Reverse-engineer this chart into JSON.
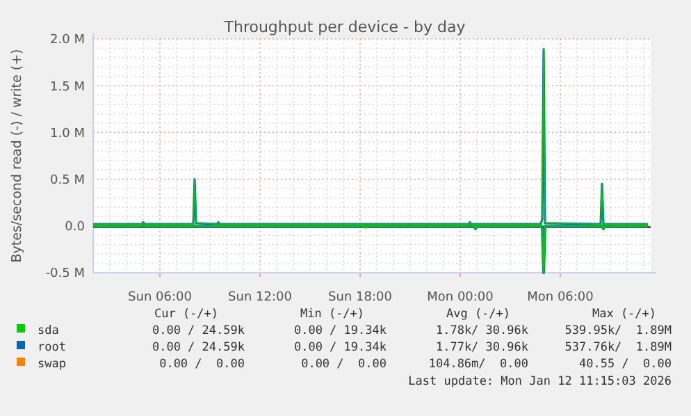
{
  "chart_data": {
    "type": "line",
    "title": "Throughput per device - by day",
    "ylabel": "Bytes/second read (-) / write (+)",
    "xlim": [
      "2026-01-11T02:00",
      "2026-01-12T11:25"
    ],
    "ylim": [
      -0.5,
      2.0
    ],
    "xticks": [
      {
        "value": "2026-01-11T03:00",
        "label": null
      },
      {
        "value": "2026-01-11T04:00",
        "label": null
      },
      {
        "value": "2026-01-11T05:00",
        "label": null
      },
      {
        "value": "2026-01-11T06:00",
        "label": "Sun 06:00"
      },
      {
        "value": "2026-01-11T07:00",
        "label": null
      },
      {
        "value": "2026-01-11T08:00",
        "label": null
      },
      {
        "value": "2026-01-11T09:00",
        "label": null
      },
      {
        "value": "2026-01-11T10:00",
        "label": null
      },
      {
        "value": "2026-01-11T11:00",
        "label": null
      },
      {
        "value": "2026-01-11T12:00",
        "label": "Sun 12:00"
      },
      {
        "value": "2026-01-11T13:00",
        "label": null
      },
      {
        "value": "2026-01-11T14:00",
        "label": null
      },
      {
        "value": "2026-01-11T15:00",
        "label": null
      },
      {
        "value": "2026-01-11T16:00",
        "label": null
      },
      {
        "value": "2026-01-11T17:00",
        "label": null
      },
      {
        "value": "2026-01-11T18:00",
        "label": "Sun 18:00"
      },
      {
        "value": "2026-01-11T19:00",
        "label": null
      },
      {
        "value": "2026-01-11T20:00",
        "label": null
      },
      {
        "value": "2026-01-11T21:00",
        "label": null
      },
      {
        "value": "2026-01-11T22:00",
        "label": null
      },
      {
        "value": "2026-01-11T23:00",
        "label": null
      },
      {
        "value": "2026-01-12T00:00",
        "label": "Mon 00:00"
      },
      {
        "value": "2026-01-12T01:00",
        "label": null
      },
      {
        "value": "2026-01-12T02:00",
        "label": null
      },
      {
        "value": "2026-01-12T03:00",
        "label": null
      },
      {
        "value": "2026-01-12T04:00",
        "label": null
      },
      {
        "value": "2026-01-12T05:00",
        "label": null
      },
      {
        "value": "2026-01-12T06:00",
        "label": "Mon 06:00"
      },
      {
        "value": "2026-01-12T07:00",
        "label": null
      },
      {
        "value": "2026-01-12T08:00",
        "label": null
      },
      {
        "value": "2026-01-12T09:00",
        "label": null
      },
      {
        "value": "2026-01-12T10:00",
        "label": null
      },
      {
        "value": "2026-01-12T11:00",
        "label": null
      }
    ],
    "yticks": [
      {
        "value": -0.5,
        "label": "-0.5 M"
      },
      {
        "value": -0.4,
        "label": null
      },
      {
        "value": -0.3,
        "label": null
      },
      {
        "value": -0.2,
        "label": null
      },
      {
        "value": -0.1,
        "label": null
      },
      {
        "value": 0,
        "label": "0.0"
      },
      {
        "value": 0.1,
        "label": null
      },
      {
        "value": 0.2,
        "label": null
      },
      {
        "value": 0.3,
        "label": null
      },
      {
        "value": 0.4,
        "label": null
      },
      {
        "value": 0.5,
        "label": "0.5 M"
      },
      {
        "value": 0.6,
        "label": null
      },
      {
        "value": 0.7,
        "label": null
      },
      {
        "value": 0.8,
        "label": null
      },
      {
        "value": 0.9,
        "label": null
      },
      {
        "value": 1.0,
        "label": "1.0 M"
      },
      {
        "value": 1.1,
        "label": null
      },
      {
        "value": 1.2,
        "label": null
      },
      {
        "value": 1.3,
        "label": null
      },
      {
        "value": 1.4,
        "label": null
      },
      {
        "value": 1.5,
        "label": "1.5 M"
      },
      {
        "value": 1.6,
        "label": null
      },
      {
        "value": 1.7,
        "label": null
      },
      {
        "value": 1.8,
        "label": null
      },
      {
        "value": 1.9,
        "label": null
      },
      {
        "value": 2.0,
        "label": "2.0 M"
      }
    ],
    "grid": true,
    "legend": "bottom",
    "marker": "none",
    "line_style": "solid",
    "ref_lines": [
      {
        "axis": "y",
        "value": 0,
        "color": "#000000"
      }
    ],
    "series": [
      {
        "name": "sda",
        "color": "#00cc00",
        "x": [
          "2026-01-11T02:00",
          "2026-01-11T04:55",
          "2026-01-11T05:00",
          "2026-01-11T05:05",
          "2026-01-11T08:00",
          "2026-01-11T08:05",
          "2026-01-11T08:10",
          "2026-01-11T09:25",
          "2026-01-11T09:30",
          "2026-01-11T09:35",
          "2026-01-12T00:30",
          "2026-01-12T00:35",
          "2026-01-12T00:40",
          "2026-01-12T04:50",
          "2026-01-12T04:55",
          "2026-01-12T05:00",
          "2026-01-12T05:05",
          "2026-01-12T08:25",
          "2026-01-12T08:30",
          "2026-01-12T08:35",
          "2026-01-12T11:15"
        ],
        "values": [
          0.02,
          0.02,
          0.04,
          0.02,
          0.02,
          0.5,
          0.03,
          0.02,
          0.04,
          0.02,
          0.02,
          0.04,
          0.02,
          0.02,
          0.1,
          1.89,
          0.03,
          0.02,
          0.45,
          0.02,
          0.02
        ]
      },
      {
        "color": "#00cc00",
        "x": [
          "2026-01-11T02:00",
          "2026-01-11T18:15",
          "2026-01-11T18:20",
          "2026-01-11T18:25",
          "2026-01-12T00:50",
          "2026-01-12T00:55",
          "2026-01-12T01:00",
          "2026-01-12T04:50",
          "2026-01-12T04:55",
          "2026-01-12T05:00",
          "2026-01-12T05:05",
          "2026-01-12T08:30",
          "2026-01-12T08:35",
          "2026-01-12T08:40",
          "2026-01-12T11:15"
        ],
        "values": [
          0,
          0,
          -0.02,
          0,
          0,
          -0.03,
          0,
          0,
          -0.02,
          -0.5,
          0,
          0,
          -0.03,
          0,
          0
        ]
      },
      {
        "name": "root",
        "color": "#0066b3",
        "x": [
          "2026-01-11T02:00",
          "2026-01-11T04:55",
          "2026-01-11T05:00",
          "2026-01-11T05:05",
          "2026-01-11T08:00",
          "2026-01-11T08:05",
          "2026-01-11T08:10",
          "2026-01-11T09:25",
          "2026-01-11T09:30",
          "2026-01-11T09:35",
          "2026-01-12T00:30",
          "2026-01-12T00:35",
          "2026-01-12T00:40",
          "2026-01-12T04:50",
          "2026-01-12T04:55",
          "2026-01-12T05:00",
          "2026-01-12T05:05",
          "2026-01-12T08:25",
          "2026-01-12T08:30",
          "2026-01-12T08:35",
          "2026-01-12T11:15"
        ],
        "values": [
          0.02,
          0.02,
          0.04,
          0.02,
          0.02,
          0.5,
          0.03,
          0.02,
          0.04,
          0.02,
          0.02,
          0.04,
          0.02,
          0.02,
          0.08,
          1.89,
          0.03,
          0.02,
          0.45,
          0.02,
          0.02
        ]
      },
      {
        "color": "#0066b3",
        "x": [
          "2026-01-11T02:00",
          "2026-01-11T18:15",
          "2026-01-11T18:20",
          "2026-01-11T18:25",
          "2026-01-12T00:50",
          "2026-01-12T00:55",
          "2026-01-12T01:00",
          "2026-01-12T04:50",
          "2026-01-12T04:55",
          "2026-01-12T05:00",
          "2026-01-12T05:05",
          "2026-01-12T08:30",
          "2026-01-12T08:35",
          "2026-01-12T08:40",
          "2026-01-12T11:15"
        ],
        "values": [
          0,
          0,
          -0.01,
          0,
          0,
          -0.03,
          0,
          0,
          -0.01,
          -0.5,
          0,
          0,
          -0.03,
          0,
          0
        ]
      },
      {
        "name": "swap",
        "color": "#ff8000"
      }
    ],
    "annotations": [
      "Cur (-/+)",
      "Min (-/+)",
      "Avg (-/+)",
      "Max (-/+)",
      "0.00 / 24.59k",
      "0.00 / 19.34k",
      "1.78k/ 30.96k",
      "539.95k/  1.89M",
      "0.00 / 24.59k",
      "0.00 / 19.34k",
      "1.77k/ 30.96k",
      "537.76k/  1.89M",
      "0.00 /  0.00",
      "0.00 /  0.00",
      "104.86m/  0.00",
      "40.55 /  0.00",
      "Last update: Mon Jan 12 11:15:03 2026"
    ]
  }
}
